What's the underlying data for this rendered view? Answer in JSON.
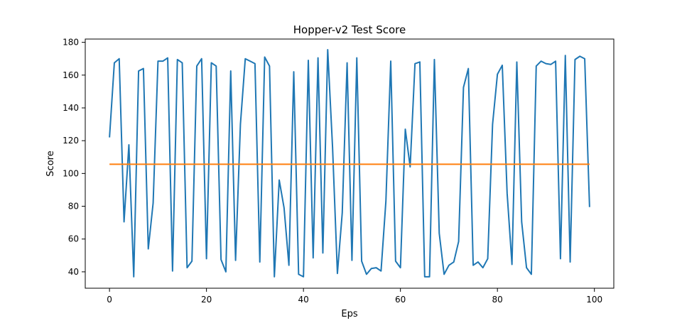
{
  "chart_data": {
    "type": "line",
    "title": "Hopper-v2 Test Score",
    "xlabel": "Eps",
    "ylabel": "Score",
    "xlim": [
      -5,
      104
    ],
    "ylim": [
      30,
      182
    ],
    "xticks": [
      0,
      20,
      40,
      60,
      80,
      100
    ],
    "yticks": [
      40,
      60,
      80,
      100,
      120,
      140,
      160,
      180
    ],
    "grid": false,
    "series": [
      {
        "color": "#1f77b4",
        "x": [
          0,
          1,
          2,
          3,
          4,
          5,
          6,
          7,
          8,
          9,
          10,
          11,
          12,
          13,
          14,
          15,
          16,
          17,
          18,
          19,
          20,
          21,
          22,
          23,
          24,
          25,
          26,
          27,
          28,
          29,
          30,
          31,
          32,
          33,
          34,
          35,
          36,
          37,
          38,
          39,
          40,
          41,
          42,
          43,
          44,
          45,
          46,
          47,
          48,
          49,
          50,
          51,
          52,
          53,
          54,
          55,
          56,
          57,
          58,
          59,
          60,
          61,
          62,
          63,
          64,
          65,
          66,
          67,
          68,
          69,
          70,
          71,
          72,
          73,
          74,
          75,
          76,
          77,
          78,
          79,
          80,
          81,
          82,
          83,
          84,
          85,
          86,
          87,
          88,
          89,
          90,
          91,
          92,
          93,
          94,
          95,
          96,
          97,
          98,
          99
        ],
        "values": [
          122,
          167.5,
          170,
          70.5,
          117.5,
          37,
          162.5,
          164,
          54,
          82,
          168.5,
          168.5,
          170.5,
          40.5,
          169.5,
          167.5,
          42.5,
          46.5,
          165.5,
          170,
          48,
          167.5,
          165.5,
          47.5,
          40,
          162.5,
          47,
          130,
          170,
          168.5,
          167,
          46,
          171,
          165.5,
          37,
          96,
          79,
          44,
          162,
          38.5,
          37,
          169,
          48.5,
          170.5,
          51.5,
          175.5,
          116,
          39,
          76,
          167.5,
          47,
          170.5,
          46.5,
          38.5,
          42,
          42.5,
          40.5,
          83,
          168.5,
          46.5,
          42.5,
          127,
          104,
          167,
          168,
          37,
          37,
          169.5,
          63.5,
          38.5,
          44,
          46,
          58.5,
          152.5,
          164,
          44,
          46,
          42.5,
          48,
          130,
          160.5,
          166,
          88,
          44.5,
          168,
          70.5,
          42.5,
          38.5,
          165.5,
          168.5,
          167,
          166.5,
          168.5,
          48,
          172,
          46,
          169.5,
          171.5,
          170,
          79.5
        ]
      },
      {
        "color": "#ff7f0e",
        "x": [
          0,
          99
        ],
        "values": [
          105.6,
          105.6
        ]
      }
    ]
  }
}
